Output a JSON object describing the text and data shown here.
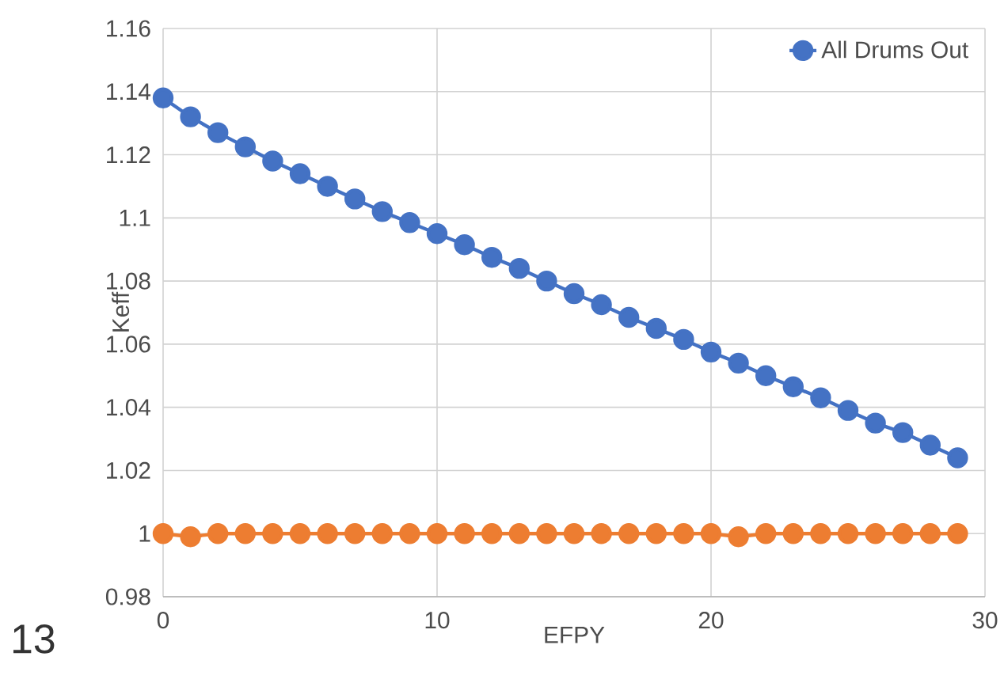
{
  "chart_data": {
    "type": "line",
    "xlabel": "EFPY",
    "ylabel": "Keff",
    "x": [
      0,
      1,
      2,
      3,
      4,
      5,
      6,
      7,
      8,
      9,
      10,
      11,
      12,
      13,
      14,
      15,
      16,
      17,
      18,
      19,
      20,
      21,
      22,
      23,
      24,
      25,
      26,
      27,
      28,
      29
    ],
    "series": [
      {
        "name": "All Drums Out",
        "color": "#4472c4",
        "values": [
          1.138,
          1.132,
          1.127,
          1.1225,
          1.118,
          1.114,
          1.11,
          1.106,
          1.102,
          1.0985,
          1.095,
          1.0915,
          1.0875,
          1.084,
          1.08,
          1.076,
          1.0725,
          1.0685,
          1.065,
          1.0615,
          1.0575,
          1.054,
          1.05,
          1.0465,
          1.043,
          1.039,
          1.035,
          1.032,
          1.028,
          1.024
        ]
      },
      {
        "color": "#ed7d31",
        "values": [
          1.0,
          0.999,
          1.0,
          1.0,
          1.0,
          1.0,
          1.0,
          1.0,
          1.0,
          1.0,
          1.0,
          1.0,
          1.0,
          1.0,
          1.0,
          1.0,
          1.0,
          1.0,
          1.0,
          1.0,
          1.0,
          0.999,
          1.0,
          1.0,
          1.0,
          1.0,
          1.0,
          1.0,
          1.0,
          1.0
        ]
      }
    ],
    "xlim": [
      0,
      30
    ],
    "xticks": [
      0,
      10,
      20,
      30
    ],
    "ylim": [
      0.98,
      1.16
    ],
    "yticks": [
      0.98,
      1,
      1.02,
      1.04,
      1.06,
      1.08,
      1.1,
      1.12,
      1.14,
      1.16
    ],
    "grid": true,
    "legend": "top right",
    "marker": "circle",
    "line_style": "solid",
    "annotations": [
      "13"
    ]
  }
}
